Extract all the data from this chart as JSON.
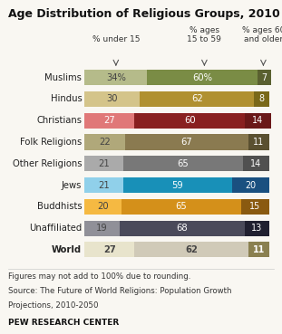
{
  "title": "Age Distribution of Religious Groups, 2010",
  "groups": [
    "Muslims",
    "Hindus",
    "Christians",
    "Folk Religions",
    "Other Religions",
    "Jews",
    "Buddhists",
    "Unaffiliated",
    "World"
  ],
  "under15": [
    34,
    30,
    27,
    22,
    21,
    21,
    20,
    19,
    27
  ],
  "age15to59": [
    60,
    62,
    60,
    67,
    65,
    59,
    65,
    68,
    62
  ],
  "age60plus": [
    7,
    8,
    14,
    11,
    14,
    20,
    15,
    13,
    11
  ],
  "colors_under15": [
    "#b5bb8a",
    "#d4c48a",
    "#e07878",
    "#b0a87a",
    "#aaaaaa",
    "#90d0ea",
    "#f5b942",
    "#909098",
    "#e8e4cc"
  ],
  "colors_15to59": [
    "#7a8c45",
    "#b09030",
    "#892020",
    "#8a7a50",
    "#787878",
    "#1890b8",
    "#d4901a",
    "#4a4a5a",
    "#d0cab8"
  ],
  "colors_60plus": [
    "#5a6030",
    "#7a6818",
    "#6a1818",
    "#5a5030",
    "#505050",
    "#1a5080",
    "#8a5a10",
    "#202030",
    "#8a8050"
  ],
  "label_colors_under15": [
    "#444444",
    "#444444",
    "white",
    "#444444",
    "#444444",
    "#444444",
    "#444444",
    "#444444",
    "#444444"
  ],
  "label_colors_15to59": [
    "white",
    "white",
    "white",
    "white",
    "white",
    "white",
    "white",
    "white",
    "#444444"
  ],
  "label_colors_60plus": [
    "white",
    "white",
    "white",
    "white",
    "white",
    "white",
    "white",
    "white",
    "white"
  ],
  "col_header1": "% under 15",
  "col_header2": "% ages\n15 to 59",
  "col_header3": "% ages 60\nand older",
  "footnote1": "Figures may not add to 100% due to rounding.",
  "footnote2": "Source: The Future of World Religions: Population Growth",
  "footnote3": "Projections, 2010-2050",
  "source_label": "PEW RESEARCH CENTER",
  "background": "#f9f7f2"
}
